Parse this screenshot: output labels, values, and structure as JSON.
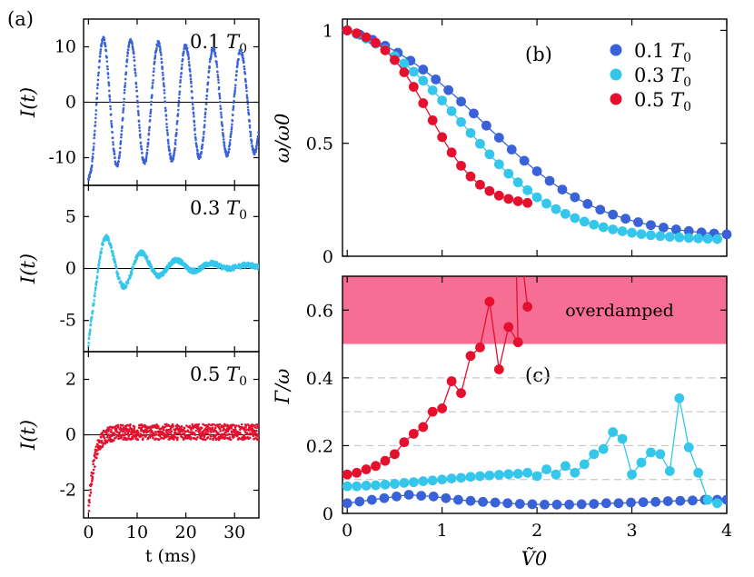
{
  "chart_data": [
    {
      "panel": "(a)",
      "type": "scatter",
      "subpanels": [
        {
          "label": "0.1 T0",
          "color": "#3a62d8",
          "ylabel": "I(t)",
          "ylim": [
            -15,
            15
          ],
          "yticks": [
            10,
            0,
            -10
          ],
          "ytick_labels": [
            "10",
            "0",
            "-10"
          ],
          "signal": {
            "amplitude": 12.0,
            "offset": 0.0,
            "period_ms": 5.65,
            "decay_ms": 120,
            "start": -14.0,
            "noise": 0.4
          }
        },
        {
          "label": "0.3 T0",
          "color": "#35c6ec",
          "ylabel": "I(t)",
          "ylim": [
            -8,
            8
          ],
          "yticks": [
            5,
            0,
            -5
          ],
          "ytick_labels": [
            "5",
            "0",
            "-5"
          ],
          "signal": {
            "amplitude": 4.2,
            "offset": 0.2,
            "period_ms": 7.2,
            "decay_ms": 9.5,
            "start": -7.2,
            "noise": 0.25
          }
        },
        {
          "label": "0.5 T0",
          "color": "#e5102e",
          "ylabel": "I(t)",
          "ylim": [
            -3,
            3
          ],
          "yticks": [
            2,
            0,
            -2
          ],
          "ytick_labels": [
            "2",
            "0",
            "-2"
          ],
          "signal": {
            "amplitude": 0.0,
            "offset": 0.1,
            "period_ms": 10,
            "decay_ms": 1.2,
            "start": -2.8,
            "noise": 0.28
          }
        }
      ],
      "xlabel": "t (ms)",
      "xlim": [
        -1,
        35
      ],
      "xticks": [
        0,
        10,
        20,
        30
      ],
      "xtick_labels": [
        "0",
        "10",
        "20",
        "30"
      ]
    },
    {
      "panel": "(b)",
      "type": "line",
      "xlim": [
        -0.05,
        4
      ],
      "ylim": [
        0,
        1.05
      ],
      "xticks": [
        0,
        1,
        2,
        3,
        4
      ],
      "yticks": [
        0,
        0.5,
        1
      ],
      "ytick_labels": [
        "0",
        "0.5",
        "1"
      ],
      "ylabel": "ω/ω0",
      "legend_position": "top-right",
      "series": [
        {
          "name": "0.1 T0",
          "color": "#3a62d8",
          "fit": {
            "type": "tanh",
            "center": 1.45,
            "width": 1.25,
            "amp": 0.92
          },
          "x_start": 0,
          "x_end": 4,
          "n": 31
        },
        {
          "name": "0.3 T0",
          "color": "#35c6ec",
          "fit": {
            "type": "tanh",
            "center": 1.23,
            "width": 1.05,
            "amp": 0.93
          },
          "x_start": 0,
          "x_end": 3.9,
          "n": 40
        },
        {
          "name": "0.5 T0",
          "color": "#e5102e",
          "fit": {
            "type": "tanh",
            "center": 0.87,
            "width": 0.53,
            "amp": 0.78
          },
          "x_start": 0,
          "x_end": 1.9,
          "n": 20
        }
      ]
    },
    {
      "panel": "(c)",
      "type": "line",
      "xlim": [
        -0.05,
        4
      ],
      "ylim": [
        0,
        0.7
      ],
      "xticks": [
        0,
        1,
        2,
        3,
        4
      ],
      "xtick_labels": [
        "0",
        "1",
        "2",
        "3",
        "4"
      ],
      "yticks": [
        0,
        0.2,
        0.4,
        0.6
      ],
      "ytick_labels": [
        "0",
        "0.2",
        "0.4",
        "0.6"
      ],
      "ylabel": "Γ/ω",
      "xlabel": "Ṽ0",
      "gridlines_y": [
        0.1,
        0.2,
        0.3,
        0.4
      ],
      "shaded_band": {
        "ymin": 0.5,
        "ymax": 0.7,
        "label": "overdamped",
        "color": "#f76e94"
      },
      "series": [
        {
          "name": "0.1 T0",
          "color": "#3a62d8",
          "x": [
            0,
            0.13,
            0.26,
            0.39,
            0.52,
            0.65,
            0.78,
            0.91,
            1.04,
            1.17,
            1.3,
            1.43,
            1.56,
            1.69,
            1.82,
            1.95,
            2.08,
            2.21,
            2.34,
            2.47,
            2.6,
            2.73,
            2.86,
            2.99,
            3.12,
            3.25,
            3.38,
            3.51,
            3.64,
            3.77,
            3.9,
            4.0
          ],
          "y": [
            0.03,
            0.035,
            0.04,
            0.045,
            0.05,
            0.055,
            0.052,
            0.05,
            0.045,
            0.04,
            0.037,
            0.034,
            0.032,
            0.03,
            0.028,
            0.027,
            0.026,
            0.026,
            0.026,
            0.027,
            0.028,
            0.03,
            0.03,
            0.032,
            0.033,
            0.034,
            0.036,
            0.037,
            0.038,
            0.04,
            0.04,
            0.04
          ]
        },
        {
          "name": "0.3 T0",
          "color": "#35c6ec",
          "x": [
            0,
            0.1,
            0.2,
            0.3,
            0.4,
            0.5,
            0.6,
            0.7,
            0.8,
            0.9,
            1.0,
            1.1,
            1.2,
            1.3,
            1.4,
            1.5,
            1.6,
            1.7,
            1.8,
            1.9,
            2.0,
            2.1,
            2.2,
            2.3,
            2.4,
            2.5,
            2.6,
            2.7,
            2.8,
            2.9,
            3.0,
            3.1,
            3.2,
            3.3,
            3.4,
            3.5,
            3.6,
            3.7,
            3.8,
            3.9
          ],
          "y": [
            0.08,
            0.08,
            0.082,
            0.083,
            0.085,
            0.087,
            0.09,
            0.092,
            0.095,
            0.097,
            0.1,
            0.103,
            0.105,
            0.108,
            0.11,
            0.112,
            0.114,
            0.116,
            0.117,
            0.12,
            0.11,
            0.13,
            0.115,
            0.14,
            0.12,
            0.145,
            0.175,
            0.19,
            0.24,
            0.22,
            0.115,
            0.15,
            0.18,
            0.175,
            0.125,
            0.34,
            0.195,
            0.12,
            0.04,
            0.03
          ]
        },
        {
          "name": "0.5 T0",
          "color": "#e5102e",
          "x": [
            0,
            0.1,
            0.2,
            0.3,
            0.4,
            0.5,
            0.6,
            0.7,
            0.8,
            0.9,
            1.0,
            1.1,
            1.2,
            1.3,
            1.4,
            1.5,
            1.6,
            1.7,
            1.8,
            1.9
          ],
          "y": [
            0.115,
            0.12,
            0.13,
            0.14,
            0.155,
            0.175,
            0.21,
            0.235,
            0.255,
            0.3,
            0.31,
            0.39,
            0.355,
            0.465,
            0.49,
            0.625,
            0.425,
            0.55,
            0.505,
            0.61
          ]
        }
      ]
    }
  ],
  "panel_a": {
    "letter": "(a)",
    "sub_labels": [
      "0.1 T0",
      "0.3 T0",
      "0.5 T0"
    ],
    "ylabel": "I(t)",
    "xlabel": "t (ms)"
  },
  "panel_b": {
    "letter": "(b)",
    "ylabel": "ω/ω0"
  },
  "panel_c": {
    "letter": "(c)",
    "ylabel": "Γ/ω",
    "xlabel": "Ṽ0",
    "band_label": "overdamped"
  },
  "legend": [
    "0.1 T0",
    "0.3 T0",
    "0.5 T0"
  ],
  "colors": {
    "blue": "#3a62d8",
    "cyan": "#35c6ec",
    "red": "#e5102e",
    "overdamped": "#f76e94",
    "grid": "#c8c8c8"
  }
}
